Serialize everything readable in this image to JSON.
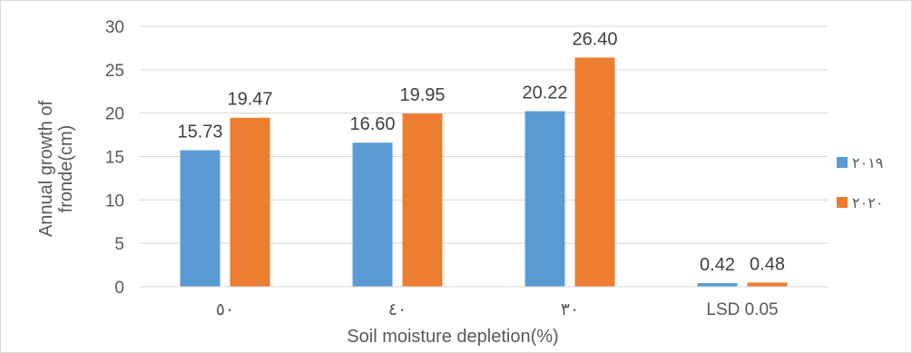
{
  "chart_data": {
    "type": "bar",
    "categories": [
      "٥٠",
      "٤٠",
      "٣٠",
      "LSD 0.05"
    ],
    "series": [
      {
        "name": "٢٠١٩",
        "values": [
          15.73,
          16.6,
          20.22,
          0.42
        ],
        "labels": [
          "15.73",
          "16.60",
          "20.22",
          "0.42"
        ]
      },
      {
        "name": "٢٠٢٠",
        "values": [
          19.47,
          19.95,
          26.4,
          0.48
        ],
        "labels": [
          "19.47",
          "19.95",
          "26.40",
          "0.48"
        ]
      }
    ],
    "xlabel": "Soil moisture depletion(%)",
    "ylabel_lines": [
      "Annual growth of",
      "fronde(cm)"
    ],
    "ylim": [
      0,
      30
    ],
    "yticks": [
      "0",
      "5",
      "10",
      "15",
      "20",
      "25",
      "30"
    ],
    "grid": true,
    "legend_position": "right",
    "colors": [
      "#5b9bd5",
      "#ed7d31"
    ]
  }
}
